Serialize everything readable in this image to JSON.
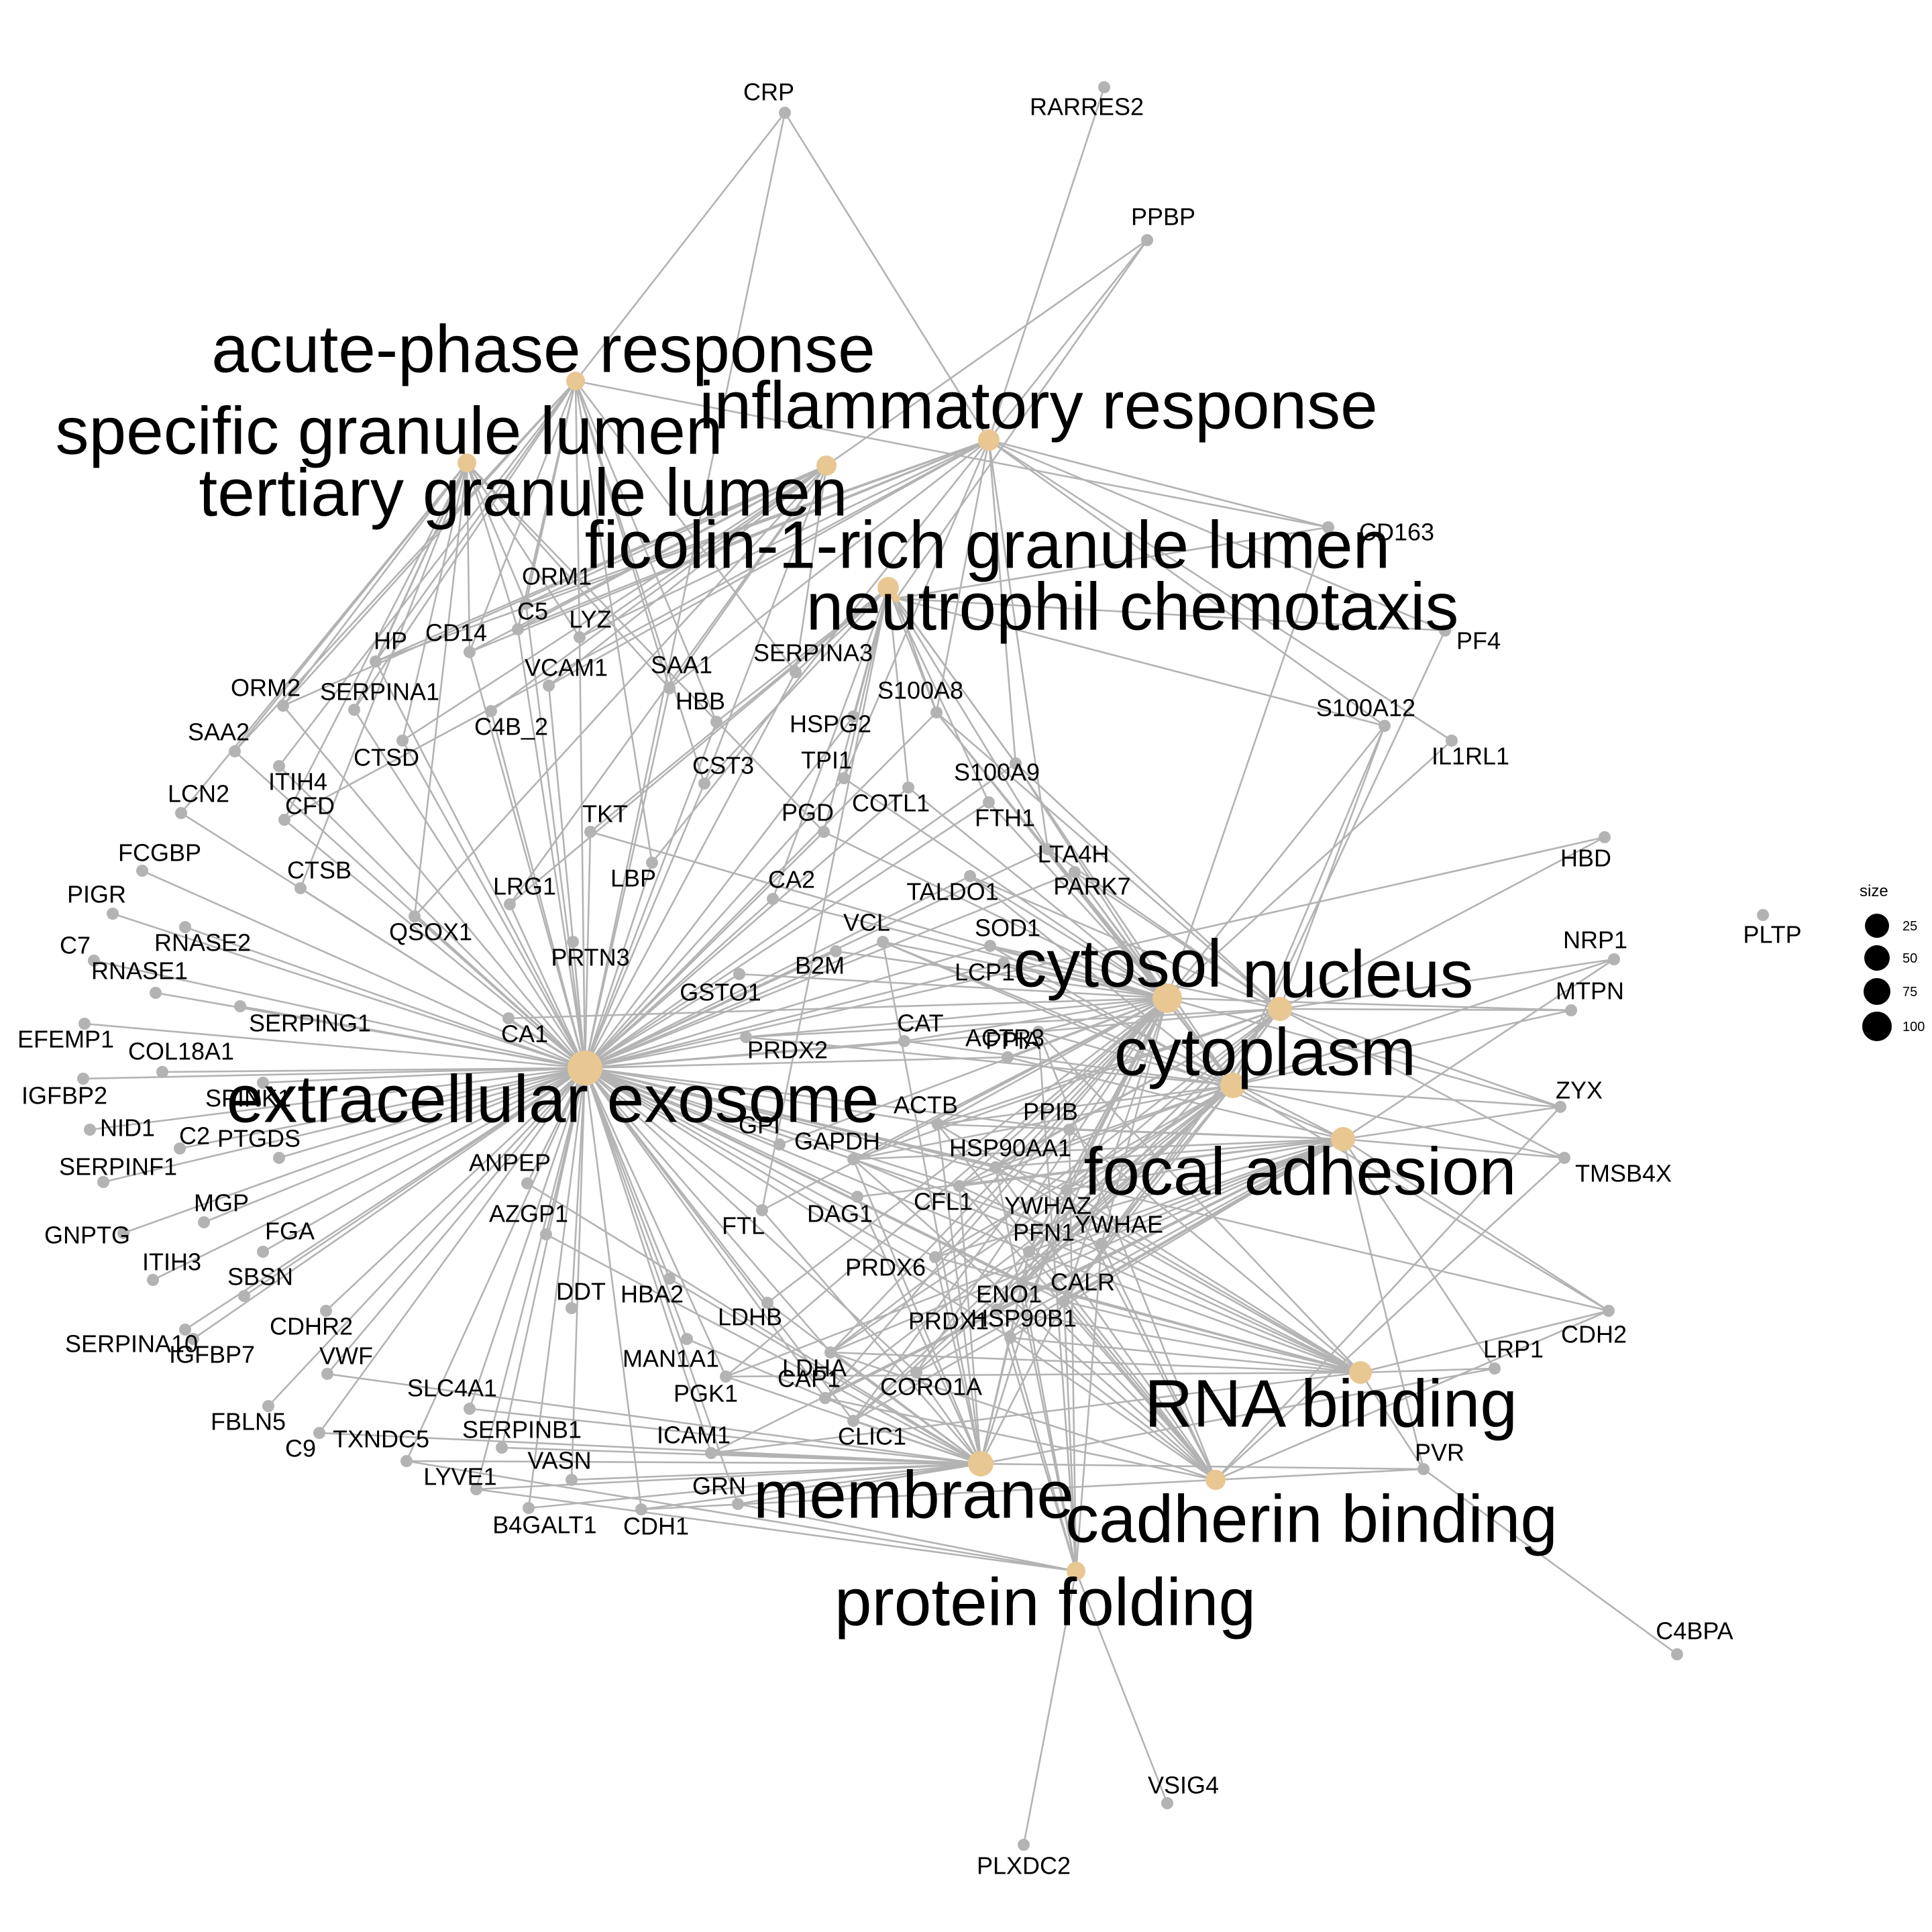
{
  "legend": {
    "title": "size",
    "items": [
      {
        "label": "25",
        "value": 25
      },
      {
        "label": "50",
        "value": 50
      },
      {
        "label": "75",
        "value": 75
      },
      {
        "label": "100",
        "value": 100
      }
    ]
  },
  "colors": {
    "term": "#e8c793",
    "gene": "#b3b3b3",
    "edge": "#b3b3b3"
  },
  "terms": [
    {
      "id": "acute-phase response"
    },
    {
      "id": "specific granule lumen"
    },
    {
      "id": "tertiary granule lumen"
    },
    {
      "id": "inflammatory response"
    },
    {
      "id": "ficolin-1-rich granule lumen"
    },
    {
      "id": "neutrophil chemotaxis"
    },
    {
      "id": "extracellular exosome"
    },
    {
      "id": "cytosol"
    },
    {
      "id": "nucleus"
    },
    {
      "id": "cytoplasm"
    },
    {
      "id": "focal adhesion"
    },
    {
      "id": "RNA binding"
    },
    {
      "id": "membrane"
    },
    {
      "id": "cadherin binding"
    },
    {
      "id": "protein folding"
    }
  ],
  "genes": [
    "CRP",
    "RARRES2",
    "PPBP",
    "CD163",
    "PF4",
    "S100A12",
    "IL1RL1",
    "HBD",
    "NRP1",
    "PLTP",
    "MTPN",
    "ZYX",
    "TMSB4X",
    "CDH2",
    "LRP1",
    "PVR",
    "C4BPA",
    "VSIG4",
    "PLXDC2",
    "ORM1",
    "C5",
    "LYZ",
    "HP",
    "CD14",
    "VCAM1",
    "SAA1",
    "SERPINA3",
    "ORM2",
    "SERPINA1",
    "C4B_2",
    "HBB",
    "HSPG2",
    "S100A8",
    "SAA2",
    "CTSD",
    "ITIH4",
    "CST3",
    "TPI1",
    "S100A9",
    "LCN2",
    "CFD",
    "TKT",
    "PGD",
    "COTL1",
    "FTH1",
    "LTA4H",
    "FCGBP",
    "CTSB",
    "QSOX1",
    "LRG1",
    "LBP",
    "CA2",
    "TALDO1",
    "PARK7",
    "PIGR",
    "RNASE2",
    "PRTN3",
    "VCL",
    "SOD1",
    "C7",
    "RNASE1",
    "B2M",
    "LCP1",
    "SERPING1",
    "CA1",
    "GSTO1",
    "EFEMP1",
    "PRDX2",
    "CAT",
    "PPIA",
    "COL18A1",
    "ACTR3",
    "IGFBP2",
    "SPINK1",
    "NID1",
    "C2",
    "PTGDS",
    "ACTB",
    "PPIB",
    "SERPINF1",
    "ANPEP",
    "GPI",
    "GAPDH",
    "HSP90AA1",
    "MGP",
    "YWHAZ",
    "CFL1",
    "DAG1",
    "AZGP1",
    "FTL",
    "GNPTG",
    "FGA",
    "ITIH3",
    "PFN1",
    "YWHAE",
    "SBSN",
    "PRDX6",
    "ENO1",
    "CALR",
    "SERPINA10",
    "DDT",
    "HBA2",
    "LDHB",
    "PRDX1",
    "CDHR2",
    "HSP90B1",
    "IGFBP7",
    "VWF",
    "LDHA",
    "MAN1A1",
    "FBLN5",
    "C9",
    "CORO1A",
    "CAP1",
    "PGK1",
    "SLC4A1",
    "TXNDC5",
    "SERPINB1",
    "ICAM1",
    "CLIC1",
    "LYVE1",
    "VASN",
    "GRN",
    "B4GALT1",
    "CDH1"
  ]
}
